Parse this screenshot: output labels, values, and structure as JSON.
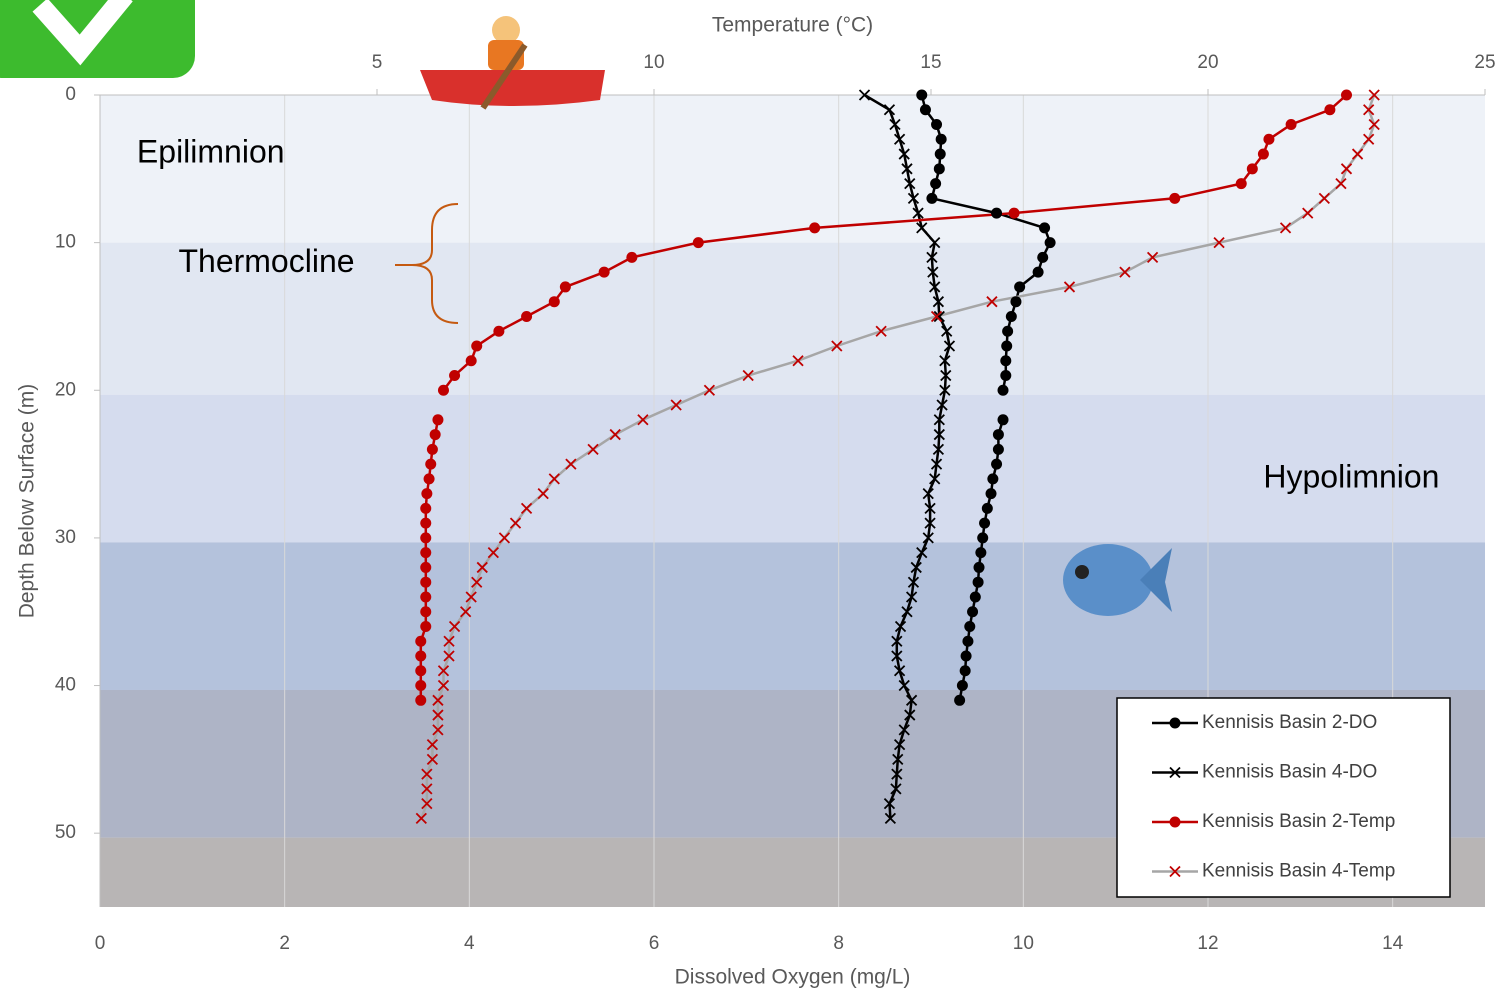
{
  "chart_data": {
    "type": "line",
    "x_label": "Dissolved Oxygen (mg/L)",
    "x2_label": "Temperature (°C)",
    "y_label": "Depth Below Surface (m)",
    "xlim": [
      0,
      15
    ],
    "xticks": [
      0,
      2,
      4,
      6,
      8,
      10,
      12,
      14
    ],
    "x2lim": [
      0,
      25
    ],
    "x2ticks": [
      5,
      10,
      15,
      20,
      25
    ],
    "ylim": [
      0,
      55
    ],
    "yticks": [
      0,
      10,
      20,
      30,
      40,
      50
    ],
    "y_inverted": true,
    "grid": true,
    "legend": "lower right",
    "bands": [
      {
        "from": 0,
        "to": 10,
        "color": "#eef2f8"
      },
      {
        "from": 10,
        "to": 20.3,
        "color": "#e1e7f2"
      },
      {
        "from": 20.3,
        "to": 30.3,
        "color": "#d5dcee"
      },
      {
        "from": 30.3,
        "to": 40.3,
        "color": "#b4c2dc"
      },
      {
        "from": 40.3,
        "to": 50.3,
        "color": "#aeb4c6"
      },
      {
        "from": 50.3,
        "to": 55,
        "color": "#b8b5b5"
      }
    ],
    "annotations": [
      {
        "text": "Epilimnion",
        "x": 0.4,
        "y": 4
      },
      {
        "text": "Thermocline",
        "x": 0.85,
        "y": 11.4
      },
      {
        "text": "Hypolimnion",
        "x": 12.6,
        "y": 26
      }
    ],
    "y": [
      0,
      1,
      2,
      3,
      4,
      5,
      6,
      7,
      8,
      9,
      10,
      11,
      12,
      13,
      14,
      15,
      16,
      17,
      18,
      19,
      20,
      21,
      22,
      23,
      24,
      25,
      26,
      27,
      28,
      29,
      30,
      31,
      32,
      33,
      34,
      35,
      36,
      37,
      38,
      39,
      40,
      41,
      42,
      43,
      44,
      45,
      46,
      47,
      48,
      49
    ],
    "series": [
      {
        "name": "Kennisis Basin 2-DO",
        "axis": "x",
        "color": "#000000",
        "marker": "circle",
        "marker_color": "#000000",
        "values": [
          8.9,
          8.94,
          9.06,
          9.11,
          9.1,
          9.09,
          9.05,
          9.01,
          9.71,
          10.23,
          10.29,
          10.21,
          10.16,
          9.96,
          9.92,
          9.87,
          9.83,
          9.82,
          9.81,
          9.81,
          9.78,
          null,
          9.78,
          9.73,
          9.73,
          9.71,
          9.67,
          9.65,
          9.61,
          9.58,
          9.56,
          9.54,
          9.52,
          9.51,
          9.48,
          9.45,
          9.42,
          9.4,
          9.38,
          9.37,
          9.34,
          9.31,
          null,
          null,
          null,
          null,
          null,
          null,
          null,
          null
        ]
      },
      {
        "name": "Kennisis Basin 4-DO",
        "axis": "x",
        "color": "#000000",
        "marker": "x",
        "marker_color": "#000000",
        "values": [
          8.28,
          8.55,
          8.61,
          8.66,
          8.71,
          8.74,
          8.77,
          8.81,
          8.86,
          8.9,
          9.04,
          9.01,
          9.02,
          9.04,
          9.08,
          9.09,
          9.17,
          9.2,
          9.15,
          9.16,
          9.15,
          9.12,
          9.09,
          9.09,
          9.08,
          9.06,
          9.04,
          8.97,
          8.99,
          8.99,
          8.97,
          8.9,
          8.84,
          8.81,
          8.79,
          8.74,
          8.67,
          8.63,
          8.63,
          8.66,
          8.71,
          8.79,
          8.77,
          8.71,
          8.66,
          8.64,
          8.63,
          8.62,
          8.55,
          8.56
        ]
      },
      {
        "name": "Kennisis Basin 2-Temp",
        "axis": "x2",
        "color": "#c00000",
        "marker": "circle",
        "marker_color": "#c00000",
        "values": [
          22.5,
          22.2,
          21.5,
          21.1,
          21.0,
          20.8,
          20.6,
          19.4,
          16.5,
          12.9,
          10.8,
          9.6,
          9.1,
          8.4,
          8.2,
          7.7,
          7.2,
          6.8,
          6.7,
          6.4,
          6.2,
          null,
          6.1,
          6.05,
          6.0,
          5.97,
          5.94,
          5.9,
          5.88,
          5.88,
          5.88,
          5.88,
          5.88,
          5.88,
          5.88,
          5.88,
          5.88,
          5.79,
          5.79,
          5.79,
          5.79,
          5.79,
          null,
          null,
          null,
          null,
          null,
          null,
          null,
          null
        ]
      },
      {
        "name": "Kennisis Basin 4-Temp",
        "axis": "x2",
        "color": "#a6a6a6",
        "marker": "x",
        "marker_color": "#c00000",
        "values": [
          23.0,
          22.9,
          23.0,
          22.9,
          22.7,
          22.5,
          22.4,
          22.1,
          21.8,
          21.4,
          20.2,
          19.0,
          18.5,
          17.5,
          16.1,
          15.1,
          14.1,
          13.3,
          12.6,
          11.7,
          11.0,
          10.4,
          9.8,
          9.3,
          8.9,
          8.5,
          8.2,
          8.0,
          7.7,
          7.5,
          7.3,
          7.1,
          6.9,
          6.8,
          6.7,
          6.6,
          6.4,
          6.3,
          6.3,
          6.2,
          6.2,
          6.1,
          6.1,
          6.1,
          6.0,
          6.0,
          5.9,
          5.9,
          5.9,
          5.8
        ]
      }
    ]
  }
}
